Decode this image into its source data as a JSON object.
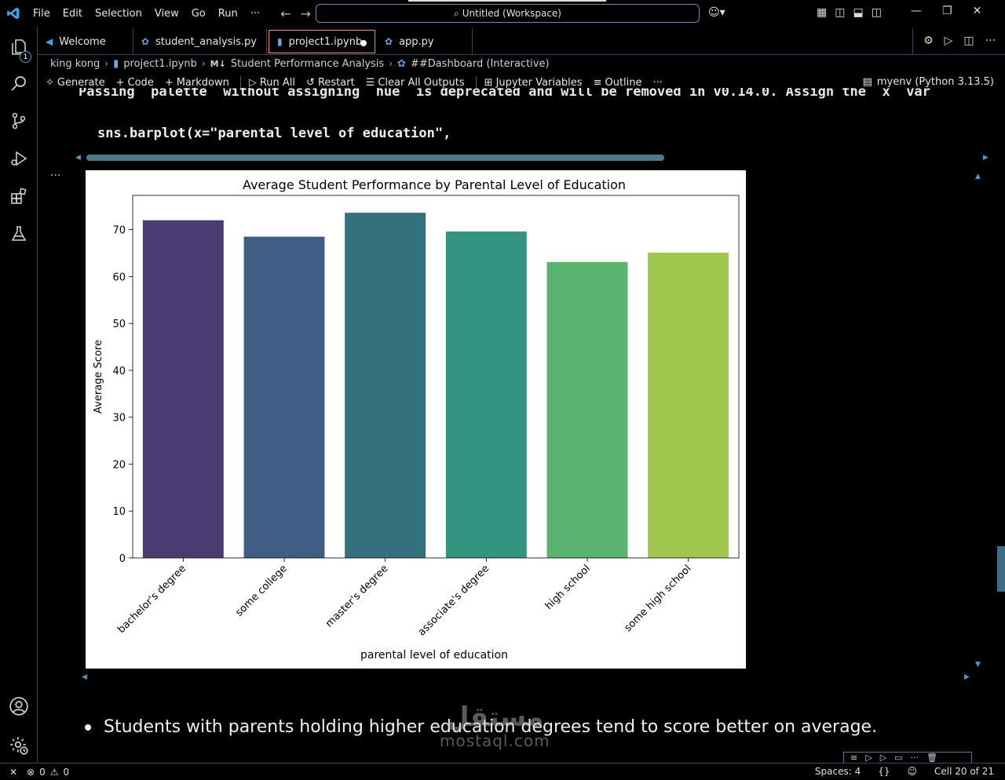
{
  "titlebar": {
    "menu": [
      "File",
      "Edit",
      "Selection",
      "View",
      "Go",
      "Run",
      "···"
    ],
    "search_text": "Untitled (Workspace)"
  },
  "activity": {
    "badge": "1"
  },
  "tabs": [
    {
      "label": "Welcome",
      "icon": "vscode-icon"
    },
    {
      "label": "student_analysis.py",
      "icon": "python-icon"
    },
    {
      "label": "project1.ipynb",
      "icon": "notebook-icon"
    },
    {
      "label": "app.py",
      "icon": "python-icon"
    }
  ],
  "breadcrumb": {
    "folder": "king kong",
    "file": "project1.ipynb",
    "md_badge": "M↓",
    "section": "Student Performance Analysis",
    "cell": "##Dashboard (Interactive)"
  },
  "toolbar": {
    "generate": "Generate",
    "code": "Code",
    "markdown": "Markdown",
    "run_all": "Run All",
    "restart": "Restart",
    "clear_outputs": "Clear All Outputs",
    "variables": "Jupyter Variables",
    "outline": "Outline",
    "more": "···",
    "kernel": "myenv (Python 3.13.5)"
  },
  "code": {
    "cutoff_line": "Passing `palette` without assigning `hue` is deprecated and will be removed in v0.14.0. Assign the `x` var",
    "line": "sns.barplot(x=\"parental level of education\","
  },
  "output_more": "···",
  "chart_data": {
    "type": "bar",
    "title": "Average Student Performance by Parental Level of Education",
    "xlabel": "parental level of education",
    "ylabel": "Average Score",
    "categories": [
      "bachelor's degree",
      "some college",
      "master's degree",
      "associate's degree",
      "high school",
      "some high school"
    ],
    "values": [
      72.0,
      68.5,
      73.6,
      69.6,
      63.1,
      65.1
    ],
    "colors": [
      "#4b3b73",
      "#3f5e85",
      "#33717f",
      "#339482",
      "#5bb370",
      "#9ec74c"
    ],
    "ylim": [
      0,
      77.3
    ],
    "yticks": [
      0,
      10,
      20,
      30,
      40,
      50,
      60,
      70
    ],
    "grid": false
  },
  "markdown": {
    "text": "Students with parents holding higher education degrees tend to score better on average."
  },
  "watermark": {
    "arabic": "مستقل",
    "latin": "mostaql.com"
  },
  "status": {
    "errors": "0",
    "warnings": "0",
    "spaces": "Spaces: 4",
    "braces": "{}",
    "cell": "Cell 20 of 21"
  }
}
